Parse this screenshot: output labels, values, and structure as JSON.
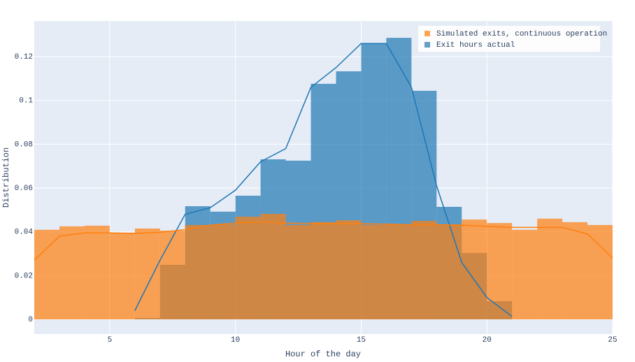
{
  "chart_data": {
    "type": "histogram",
    "xlabel": "Hour of the day",
    "ylabel": "Distribution",
    "xlim": [
      2,
      25
    ],
    "ylim": [
      -0.0067,
      0.1363
    ],
    "xticks": [
      5,
      10,
      15,
      20,
      25
    ],
    "yticks": [
      0,
      0.02,
      0.04,
      0.06,
      0.08,
      0.1,
      0.12
    ],
    "grid": true,
    "legend": "top-right",
    "series": [
      {
        "name": "Simulated exits, continuous operation",
        "color": "#ff7f0e",
        "bins": [
          2,
          3,
          4,
          5,
          6,
          7,
          8,
          9,
          10,
          11,
          12,
          13,
          14,
          15,
          16,
          17,
          18,
          19,
          20,
          21,
          22,
          23,
          24,
          25
        ],
        "values": [
          0.0409,
          0.0425,
          0.0428,
          0.0396,
          0.0415,
          0.0405,
          0.0431,
          0.0434,
          0.0469,
          0.0482,
          0.0431,
          0.0444,
          0.0453,
          0.0431,
          0.0434,
          0.045,
          0.0434,
          0.0456,
          0.044,
          0.0409,
          0.046,
          0.0444,
          0.0431
        ],
        "kde_x": [
          2,
          3,
          4,
          5,
          6,
          7,
          8,
          9,
          10,
          11,
          12,
          13,
          14,
          15,
          16,
          17,
          18,
          19,
          20,
          21,
          22,
          23,
          24,
          25
        ],
        "kde_y": [
          0.027,
          0.038,
          0.0395,
          0.0395,
          0.0393,
          0.0398,
          0.041,
          0.043,
          0.044,
          0.0445,
          0.044,
          0.0437,
          0.0437,
          0.0437,
          0.0435,
          0.0432,
          0.0432,
          0.043,
          0.0425,
          0.042,
          0.042,
          0.042,
          0.039,
          0.028
        ]
      },
      {
        "name": "Exit hours actual",
        "color": "#1f77b4",
        "bins": [
          6,
          7,
          8,
          9,
          10,
          11,
          12,
          13,
          14,
          15,
          16,
          17,
          18,
          19,
          20,
          21
        ],
        "values": [
          0.0006,
          0.0249,
          0.0517,
          0.0492,
          0.0565,
          0.0731,
          0.0725,
          0.1076,
          0.1133,
          0.1261,
          0.1286,
          0.1044,
          0.0514,
          0.0303,
          0.0083
        ],
        "kde_x": [
          6,
          7,
          8,
          9,
          10,
          11,
          12,
          13,
          14,
          15,
          16,
          17,
          18,
          19,
          20,
          21
        ],
        "kde_y": [
          0.004,
          0.027,
          0.048,
          0.051,
          0.059,
          0.072,
          0.078,
          0.106,
          0.115,
          0.126,
          0.126,
          0.106,
          0.061,
          0.026,
          0.01,
          0.0013
        ]
      }
    ]
  }
}
